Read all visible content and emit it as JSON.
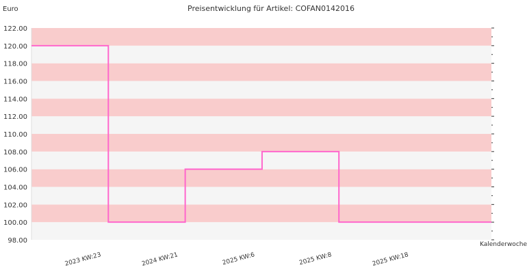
{
  "chart_data": {
    "type": "line",
    "step": true,
    "title": "Preisentwicklung für Artikel: COFAN0142016",
    "ylabel": "Euro",
    "xlabel": "Kalenderwoche",
    "ylim": [
      98,
      122
    ],
    "yticks": [
      "98.00",
      "100.00",
      "102.00",
      "104.00",
      "106.00",
      "108.00",
      "110.00",
      "112.00",
      "114.00",
      "116.00",
      "118.00",
      "120.00",
      "122.00"
    ],
    "categories": [
      "2023 KW:23",
      "2024 KW:21",
      "2025 KW:6",
      "2025 KW:8",
      "2025 KW:18"
    ],
    "series": [
      {
        "values": [
          120,
          100,
          106,
          108,
          100
        ]
      }
    ],
    "grid": true,
    "colors": {
      "line": "#ff66cc",
      "band_dark": "#f9cccc",
      "band_light": "#f5f5f5"
    }
  }
}
